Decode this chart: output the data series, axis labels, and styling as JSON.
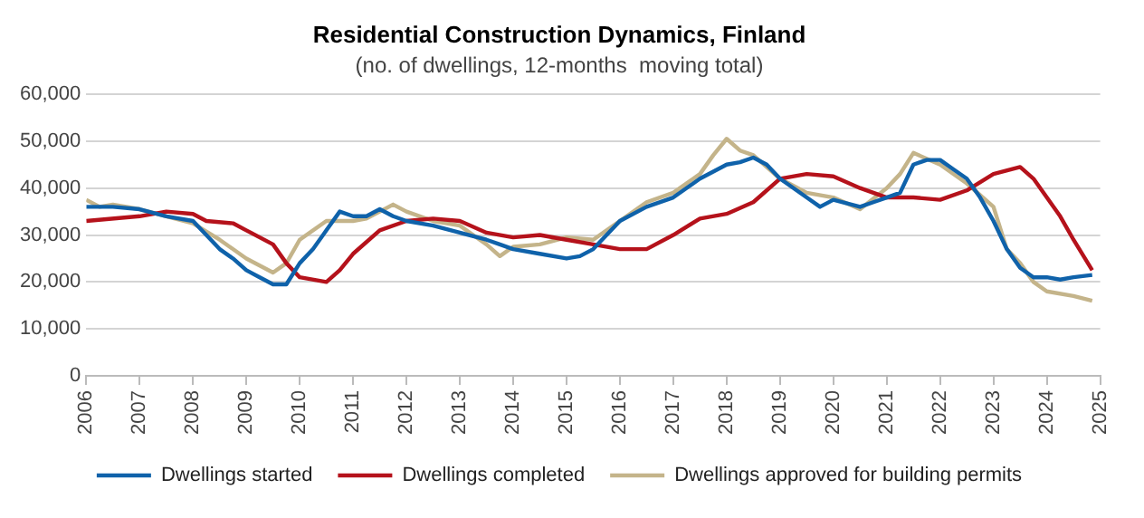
{
  "chart_data": {
    "type": "line",
    "title": "Residential Construction Dynamics, Finland",
    "subtitle": "(no. of dwellings, 12-months  moving total)",
    "xlim": [
      2006,
      2025
    ],
    "xticks": [
      2006,
      2007,
      2008,
      2009,
      2010,
      2011,
      2012,
      2013,
      2014,
      2015,
      2016,
      2017,
      2018,
      2019,
      2020,
      2021,
      2022,
      2023,
      2024,
      2025
    ],
    "ylim": [
      0,
      60000
    ],
    "yticks": [
      0,
      {
        "value": 10000,
        "label": "10,000"
      },
      {
        "value": 20000,
        "label": "20,000"
      },
      {
        "value": 30000,
        "label": "30,000"
      },
      {
        "value": 40000,
        "label": "40,000"
      },
      {
        "value": 50000,
        "label": "50,000"
      },
      {
        "value": 60000,
        "label": "60,000"
      }
    ],
    "grid": "y",
    "legend": "bottom",
    "marker": "none",
    "line_style": "solid",
    "series": [
      {
        "name": "Dwellings started",
        "color": "#0f62aa",
        "x": [
          2006,
          2006.5,
          2007,
          2007.5,
          2008,
          2008.25,
          2008.5,
          2008.75,
          2009,
          2009.25,
          2009.5,
          2009.75,
          2010,
          2010.25,
          2010.5,
          2010.75,
          2011,
          2011.25,
          2011.5,
          2011.75,
          2012,
          2012.5,
          2013,
          2013.5,
          2013.75,
          2014,
          2014.5,
          2015,
          2015.25,
          2015.5,
          2016,
          2016.5,
          2017,
          2017.5,
          2018,
          2018.25,
          2018.5,
          2018.75,
          2019,
          2019.5,
          2019.75,
          2020,
          2020.5,
          2020.75,
          2021,
          2021.25,
          2021.5,
          2021.75,
          2022,
          2022.25,
          2022.5,
          2022.75,
          2023,
          2023.25,
          2023.5,
          2023.75,
          2024,
          2024.25,
          2024.5,
          2024.85
        ],
        "values": [
          36000,
          36000,
          35500,
          34000,
          33000,
          30000,
          27000,
          25000,
          22500,
          21000,
          19500,
          19500,
          24000,
          27000,
          31000,
          35000,
          34000,
          34000,
          35500,
          34000,
          33000,
          32000,
          30500,
          29000,
          28000,
          27000,
          26000,
          25000,
          25500,
          27000,
          33000,
          36000,
          38000,
          42000,
          45000,
          45500,
          46500,
          45000,
          42000,
          38000,
          36000,
          37500,
          36000,
          37000,
          38000,
          39000,
          45000,
          46000,
          46000,
          44000,
          42000,
          38000,
          33000,
          27000,
          23000,
          21000,
          21000,
          20500,
          21000,
          21500
        ]
      },
      {
        "name": "Dwellings completed",
        "color": "#b5121b",
        "x": [
          2006,
          2007,
          2007.5,
          2008,
          2008.25,
          2008.75,
          2009,
          2009.5,
          2009.75,
          2010,
          2010.5,
          2010.75,
          2011,
          2011.5,
          2012,
          2012.5,
          2013,
          2013.5,
          2014,
          2014.5,
          2015,
          2015.5,
          2016,
          2016.5,
          2017,
          2017.5,
          2018,
          2018.5,
          2019,
          2019.5,
          2020,
          2020.5,
          2021,
          2021.5,
          2022,
          2022.5,
          2023,
          2023.5,
          2023.75,
          2024,
          2024.25,
          2024.5,
          2024.85
        ],
        "values": [
          33000,
          34000,
          35000,
          34500,
          33000,
          32500,
          31000,
          28000,
          24000,
          21000,
          20000,
          22500,
          26000,
          31000,
          33000,
          33500,
          33000,
          30500,
          29500,
          30000,
          29000,
          28000,
          27000,
          27000,
          30000,
          33500,
          34500,
          37000,
          42000,
          43000,
          42500,
          40000,
          38000,
          38000,
          37500,
          39500,
          43000,
          44500,
          42000,
          38000,
          34000,
          29000,
          22500
        ]
      },
      {
        "name": "Dwellings approved for building permits",
        "color": "#c4b48a",
        "x": [
          2006,
          2006.25,
          2006.5,
          2007,
          2007.5,
          2008,
          2008.5,
          2009,
          2009.5,
          2009.75,
          2010,
          2010.5,
          2011,
          2011.25,
          2011.75,
          2012,
          2012.5,
          2013,
          2013.5,
          2013.75,
          2014,
          2014.5,
          2015,
          2015.5,
          2016,
          2016.5,
          2017,
          2017.5,
          2017.75,
          2018,
          2018.25,
          2018.5,
          2019,
          2019.5,
          2020,
          2020.5,
          2021,
          2021.25,
          2021.5,
          2022,
          2022.5,
          2023,
          2023.25,
          2023.5,
          2023.75,
          2024,
          2024.5,
          2024.85
        ],
        "values": [
          37500,
          36000,
          36500,
          35500,
          34000,
          32500,
          29000,
          25000,
          22000,
          24000,
          29000,
          33000,
          33000,
          33500,
          36500,
          35000,
          33000,
          32000,
          28000,
          25500,
          27500,
          28000,
          29500,
          29000,
          33000,
          37000,
          39000,
          43000,
          47000,
          50500,
          48000,
          47000,
          42000,
          39000,
          38000,
          35500,
          40000,
          43000,
          47500,
          45000,
          41000,
          36000,
          27000,
          24000,
          20000,
          18000,
          17000,
          16000
        ]
      }
    ]
  }
}
